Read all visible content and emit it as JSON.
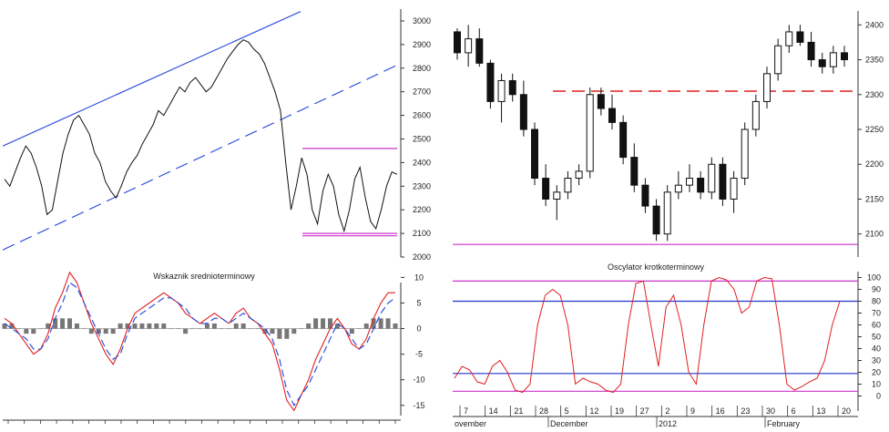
{
  "chart_data": [
    {
      "id": "left-price",
      "type": "line",
      "title": "",
      "ylim": [
        2000,
        3050
      ],
      "yticks": [
        2000,
        2100,
        2200,
        2300,
        2400,
        2500,
        2600,
        2700,
        2800,
        2900,
        3000
      ],
      "series": [
        {
          "values": [
            2330,
            2300,
            2360,
            2420,
            2470,
            2440,
            2380,
            2300,
            2180,
            2200,
            2320,
            2440,
            2520,
            2580,
            2600,
            2560,
            2520,
            2440,
            2400,
            2320,
            2280,
            2250,
            2300,
            2360,
            2400,
            2430,
            2480,
            2520,
            2560,
            2620,
            2600,
            2640,
            2680,
            2720,
            2700,
            2740,
            2760,
            2730,
            2700,
            2720,
            2760,
            2800,
            2840,
            2870,
            2900,
            2920,
            2910,
            2880,
            2860,
            2820,
            2760,
            2700,
            2620,
            2400,
            2200,
            2300,
            2420,
            2350,
            2200,
            2140,
            2280,
            2350,
            2300,
            2180,
            2110,
            2200,
            2330,
            2380,
            2250,
            2150,
            2120,
            2200,
            2300,
            2360,
            2350
          ]
        }
      ],
      "trendlines": [
        {
          "kind": "solid",
          "from": [
            0,
            2470
          ],
          "to": [
            1,
            3040
          ]
        },
        {
          "kind": "dashed",
          "from": [
            0,
            2030
          ],
          "to": [
            1,
            2820
          ]
        }
      ],
      "levels": [
        2460,
        2100,
        2090
      ]
    },
    {
      "id": "left-indicator",
      "type": "line",
      "title": "Wskaznik srednioterminowy",
      "ylim": [
        -17,
        9
      ],
      "yticks": [
        10,
        5,
        0,
        -5,
        -10,
        -15
      ],
      "series": [
        {
          "values": [
            2,
            1,
            -1,
            -3,
            -5,
            -4,
            -1,
            4,
            7,
            11,
            9,
            5,
            1,
            -2,
            -5,
            -7,
            -4,
            0,
            3,
            4,
            5,
            6,
            7,
            6,
            5,
            3,
            2,
            1,
            2,
            3,
            2,
            1,
            3,
            4,
            2,
            1,
            -1,
            -3,
            -8,
            -14,
            -16,
            -13,
            -10,
            -6,
            -3,
            0,
            2,
            0,
            -3,
            -4,
            -2,
            2,
            5,
            7,
            7
          ]
        },
        {
          "values": [
            1,
            0,
            -1,
            -2,
            -4,
            -4,
            -2,
            2,
            5,
            9,
            8,
            5,
            2,
            -1,
            -4,
            -6,
            -5,
            -1,
            2,
            3,
            4,
            5,
            6,
            6,
            5,
            4,
            2,
            1,
            1,
            2,
            2,
            1,
            2,
            3,
            2,
            1,
            0,
            -2,
            -6,
            -12,
            -15,
            -13,
            -11,
            -8,
            -5,
            -2,
            1,
            0,
            -2,
            -4,
            -3,
            0,
            3,
            5,
            6
          ]
        },
        {
          "values": [
            1,
            1,
            0,
            -1,
            -1,
            0,
            1,
            2,
            2,
            2,
            1,
            0,
            -1,
            -1,
            -1,
            -1,
            1,
            1,
            1,
            1,
            1,
            1,
            1,
            0,
            0,
            -1,
            0,
            0,
            1,
            1,
            0,
            0,
            1,
            1,
            0,
            0,
            -1,
            -1,
            -2,
            -2,
            -1,
            0,
            1,
            2,
            2,
            2,
            1,
            0,
            -1,
            0,
            1,
            2,
            2,
            2,
            1
          ]
        }
      ],
      "xticks": [
        "",
        "",
        "",
        "",
        "",
        "",
        "",
        "",
        "",
        "",
        "",
        "",
        "",
        "",
        "",
        "",
        "",
        "",
        "",
        "",
        "",
        "",
        "",
        "",
        ""
      ]
    },
    {
      "id": "right-price",
      "type": "candlestick",
      "title": "",
      "ylim": [
        2080,
        2420
      ],
      "yticks": [
        2100,
        2150,
        2200,
        2250,
        2300,
        2350,
        2400
      ],
      "series": [
        {
          "ohlc": [
            [
              2390,
              2395,
              2350,
              2360
            ],
            [
              2360,
              2400,
              2340,
              2380
            ],
            [
              2380,
              2395,
              2340,
              2345
            ],
            [
              2345,
              2350,
              2280,
              2290
            ],
            [
              2290,
              2330,
              2260,
              2320
            ],
            [
              2320,
              2330,
              2290,
              2300
            ],
            [
              2300,
              2320,
              2240,
              2250
            ],
            [
              2250,
              2260,
              2170,
              2180
            ],
            [
              2180,
              2200,
              2140,
              2150
            ],
            [
              2150,
              2170,
              2120,
              2160
            ],
            [
              2160,
              2190,
              2150,
              2180
            ],
            [
              2180,
              2200,
              2170,
              2190
            ],
            [
              2190,
              2310,
              2180,
              2300
            ],
            [
              2300,
              2310,
              2270,
              2280
            ],
            [
              2280,
              2300,
              2250,
              2260
            ],
            [
              2260,
              2270,
              2200,
              2210
            ],
            [
              2210,
              2230,
              2160,
              2170
            ],
            [
              2170,
              2180,
              2130,
              2140
            ],
            [
              2140,
              2150,
              2090,
              2100
            ],
            [
              2100,
              2170,
              2090,
              2160
            ],
            [
              2160,
              2190,
              2150,
              2170
            ],
            [
              2170,
              2200,
              2160,
              2180
            ],
            [
              2180,
              2190,
              2150,
              2160
            ],
            [
              2160,
              2210,
              2150,
              2200
            ],
            [
              2200,
              2210,
              2140,
              2150
            ],
            [
              2150,
              2190,
              2130,
              2180
            ],
            [
              2180,
              2260,
              2170,
              2250
            ],
            [
              2250,
              2300,
              2240,
              2290
            ],
            [
              2290,
              2340,
              2280,
              2330
            ],
            [
              2330,
              2380,
              2320,
              2370
            ],
            [
              2370,
              2400,
              2360,
              2390
            ],
            [
              2390,
              2400,
              2370,
              2375
            ],
            [
              2375,
              2390,
              2340,
              2350
            ],
            [
              2350,
              2360,
              2330,
              2340
            ],
            [
              2340,
              2370,
              2330,
              2360
            ],
            [
              2360,
              2370,
              2340,
              2350
            ]
          ]
        }
      ],
      "levels": [
        2305,
        2085
      ],
      "xticks": [
        "7",
        "14",
        "21",
        "28",
        "5",
        "12",
        "19",
        "27",
        "2",
        "9",
        "16",
        "23",
        "30",
        "6",
        "13",
        "20"
      ],
      "month_labels": [
        "ovember",
        "December",
        "2012",
        "February"
      ]
    },
    {
      "id": "right-oscillator",
      "type": "line",
      "title": "Oscylator krotkoterminowy",
      "ylim": [
        -5,
        105
      ],
      "yticks": [
        100,
        90,
        80,
        70,
        60,
        50,
        40,
        30,
        20,
        10,
        0
      ],
      "series": [
        {
          "values": [
            15,
            25,
            22,
            12,
            10,
            25,
            30,
            20,
            5,
            3,
            10,
            60,
            85,
            90,
            85,
            60,
            10,
            15,
            12,
            10,
            5,
            3,
            10,
            60,
            95,
            97,
            60,
            25,
            75,
            85,
            60,
            20,
            10,
            60,
            97,
            100,
            98,
            90,
            70,
            75,
            97,
            100,
            99,
            60,
            10,
            5,
            8,
            12,
            15,
            30,
            60,
            80
          ]
        }
      ],
      "levels": [
        97,
        80,
        19,
        4
      ]
    }
  ]
}
